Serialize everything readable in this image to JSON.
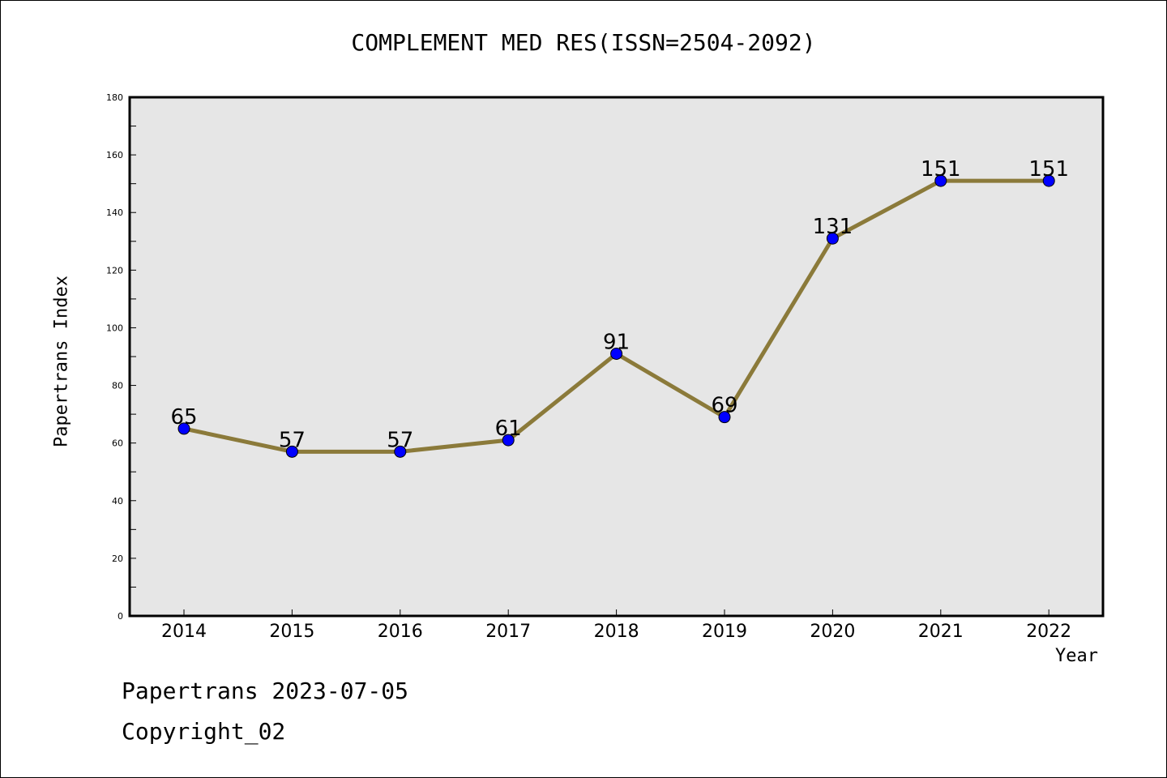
{
  "chart_data": {
    "type": "line",
    "title": "COMPLEMENT MED RES(ISSN=2504-2092)",
    "xlabel": "Year",
    "ylabel": "Papertrans Index",
    "categories": [
      "2014",
      "2015",
      "2016",
      "2017",
      "2018",
      "2019",
      "2020",
      "2021",
      "2022"
    ],
    "series": [
      {
        "values": [
          65,
          57,
          57,
          61,
          91,
          69,
          131,
          151,
          151
        ]
      }
    ],
    "ylim": [
      0,
      180
    ],
    "yticks": [
      0,
      20,
      40,
      60,
      80,
      100,
      120,
      140,
      160,
      180
    ],
    "grid": false,
    "line_color": "#8b7a3a",
    "marker_color": "#0000ff",
    "plot_background": "#e6e6e6"
  },
  "footer": {
    "line1": "Papertrans 2023-07-05",
    "line2": "Copyright_02"
  }
}
